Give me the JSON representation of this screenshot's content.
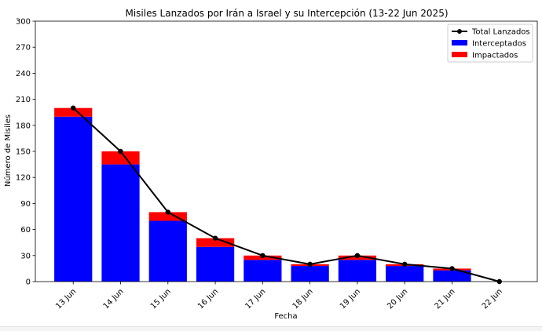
{
  "chart_data": {
    "type": "bar",
    "title": "Misiles Lanzados por Irán a Israel y su Intercepción (13-22 Jun 2025)",
    "xlabel": "Fecha",
    "ylabel": "Número de Misiles",
    "categories": [
      "13 Jun",
      "14 Jun",
      "15 Jun",
      "16 Jun",
      "17 Jun",
      "18 Jun",
      "19 Jun",
      "20 Jun",
      "21 Jun",
      "22 Jun"
    ],
    "ylim": [
      0,
      300
    ],
    "yticks": [
      0,
      30,
      60,
      90,
      120,
      150,
      180,
      210,
      240,
      270,
      300
    ],
    "stacked": true,
    "series": [
      {
        "name": "Interceptados",
        "kind": "bar",
        "color": "#0000ff",
        "values": [
          190,
          135,
          70,
          40,
          25,
          18,
          25,
          18,
          13,
          0
        ]
      },
      {
        "name": "Impactados",
        "kind": "bar",
        "color": "#ff0000",
        "values": [
          10,
          15,
          10,
          10,
          5,
          2,
          5,
          2,
          2,
          0
        ]
      },
      {
        "name": "Total Lanzados",
        "kind": "line",
        "color": "#000000",
        "marker": "circle",
        "values": [
          200,
          150,
          80,
          50,
          30,
          20,
          30,
          20,
          15,
          0
        ]
      }
    ],
    "legend_position": "top-right",
    "grid": false
  }
}
